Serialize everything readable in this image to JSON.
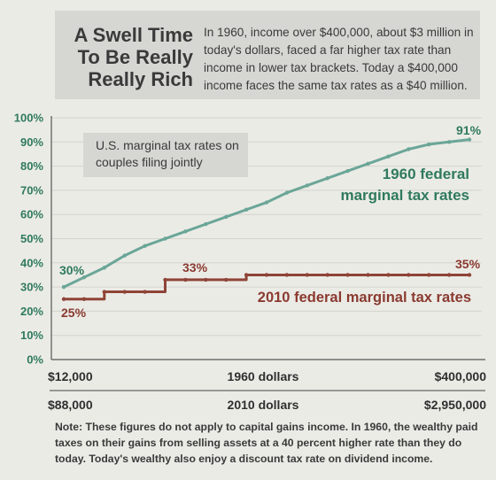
{
  "header": {
    "headline_lines": [
      "A Swell Time",
      "To Be Really",
      "Really Rich"
    ],
    "intro": "In 1960, income over $400,000, about $3 million in today's dollars, faced a far higher tax rate than income in lower tax brackets. Today a $400,000 income faces the same tax rates as a $40 million."
  },
  "inset_note": "U.S. marginal tax rates on couples filing jointly",
  "footnote": "Note: These figures do not apply to capital gains income. In 1960, the wealthy paid taxes on their gains from selling assets at a 40 percent higher rate than they do today. Today's wealthy also enjoy a discount tax rate on dividend income.",
  "colors": {
    "series_1960": "#6aa697",
    "series_2010": "#8f4437",
    "grid": "#d4d4cf",
    "green_text": "#2f7a5e",
    "red_text": "#8a3a30"
  },
  "chart_data": {
    "type": "line",
    "ylim": [
      0,
      100
    ],
    "yticks": [
      "0%",
      "10%",
      "20%",
      "30%",
      "40%",
      "50%",
      "60%",
      "70%",
      "80%",
      "90%",
      "100%"
    ],
    "x_axis_1960": {
      "start": "$12,000",
      "end": "$400,000",
      "label": "1960 dollars"
    },
    "x_axis_2010": {
      "start": "$88,000",
      "end": "$2,950,000",
      "label": "2010 dollars"
    },
    "grid": true,
    "series": [
      {
        "name": "1960 federal marginal tax rates",
        "values": [
          30,
          34,
          38,
          43,
          47,
          50,
          53,
          56,
          59,
          62,
          65,
          69,
          72,
          75,
          78,
          81,
          84,
          87,
          89,
          90,
          91
        ],
        "start_label": "30%",
        "end_label": "91%"
      },
      {
        "name": "2010 federal marginal tax rates",
        "values": [
          25,
          25,
          28,
          28,
          28,
          33,
          33,
          33,
          33,
          35,
          35,
          35,
          35,
          35,
          35,
          35,
          35,
          35,
          35,
          35,
          35
        ],
        "start_label": "25%",
        "mid_label": "33%",
        "end_label": "35%"
      }
    ]
  }
}
